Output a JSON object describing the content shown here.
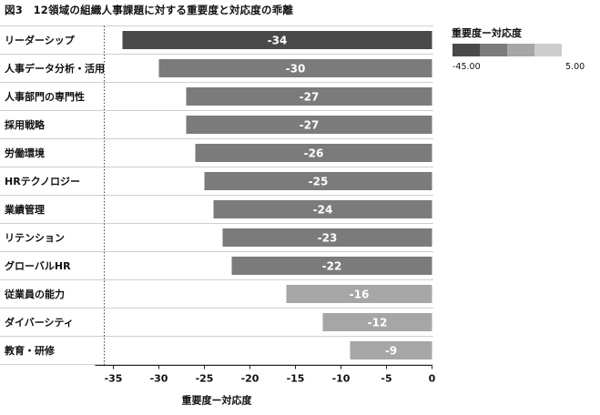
{
  "figure_title": "図3　12領域の組織人事課題に対する重要度と対応度の乖離",
  "chart_data": {
    "type": "bar",
    "orientation": "horizontal",
    "xlabel": "重要度ー対応度",
    "xlim": [
      -37,
      0
    ],
    "xticks": [
      -35,
      -30,
      -25,
      -20,
      -15,
      -10,
      -5,
      0
    ],
    "reference_line": -36,
    "grid": false,
    "categories": [
      "リーダーシップ",
      "人事データ分析・活用",
      "人事部門の専門性",
      "採用戦略",
      "労働環境",
      "HRテクノロジー",
      "業績管理",
      "リテンション",
      "グローバルHR",
      "従業員の能力",
      "ダイバーシティ",
      "教育・研修"
    ],
    "values": [
      -34,
      -30,
      -27,
      -27,
      -26,
      -25,
      -24,
      -23,
      -22,
      -16,
      -12,
      -9
    ],
    "legend": {
      "title": "重要度ー対応度",
      "min_label": "-45.00",
      "max_label": "5.00",
      "min": -45,
      "max": 5,
      "colors": [
        "#4a4a4a",
        "#7b7b7b",
        "#a6a6a6",
        "#cdcdcd"
      ],
      "placement": "top-right"
    }
  }
}
